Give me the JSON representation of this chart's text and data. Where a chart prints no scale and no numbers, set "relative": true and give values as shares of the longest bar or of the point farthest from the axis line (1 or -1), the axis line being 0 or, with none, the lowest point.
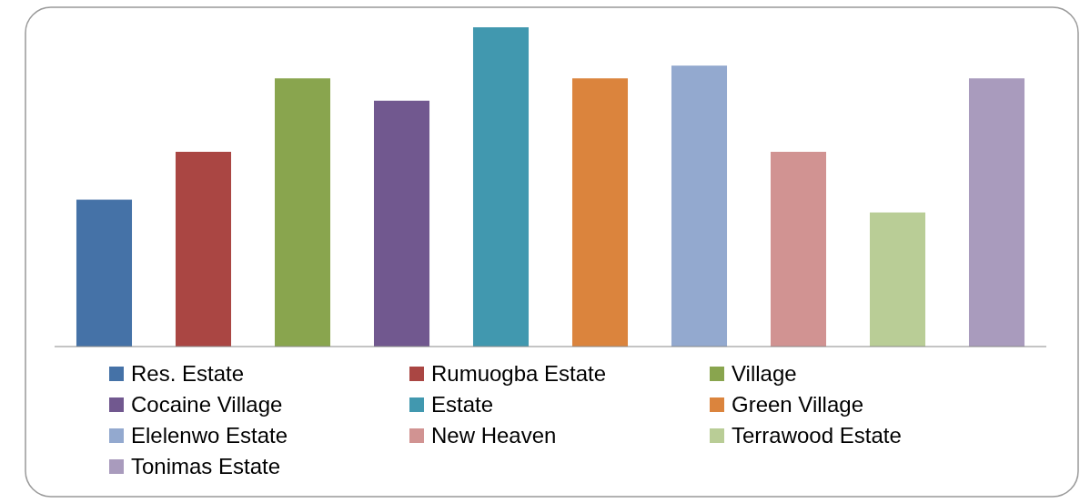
{
  "chart_data": {
    "type": "bar",
    "relative": true,
    "stacked": true,
    "categories": [
      null,
      null,
      null,
      null,
      null,
      null,
      null,
      null,
      null,
      null
    ],
    "legend": "bottom",
    "tick_labels": false,
    "series": [
      {
        "name": "Res. Estate",
        "color": "#4572a7",
        "values": [
          0.46,
          null,
          null,
          null,
          null,
          null,
          null,
          null,
          null,
          null
        ]
      },
      {
        "name": "Rumuogba Estate",
        "color": "#aa4643",
        "values": [
          null,
          0.61,
          null,
          null,
          null,
          null,
          null,
          null,
          null,
          null
        ]
      },
      {
        "name": "Village",
        "color": "#89a54e",
        "values": [
          null,
          null,
          0.84,
          null,
          null,
          null,
          null,
          null,
          null,
          null
        ]
      },
      {
        "name": "Cocaine Village",
        "color": "#71588f",
        "values": [
          null,
          null,
          null,
          0.77,
          null,
          null,
          null,
          null,
          null,
          null
        ]
      },
      {
        "name": "Estate",
        "color": "#4198af",
        "values": [
          null,
          null,
          null,
          null,
          1,
          null,
          null,
          null,
          null,
          null
        ]
      },
      {
        "name": "Green Village",
        "color": "#db843d",
        "values": [
          null,
          null,
          null,
          null,
          null,
          0.84,
          null,
          null,
          null,
          null
        ]
      },
      {
        "name": "Elelenwo Estate",
        "color": "#93a9cf",
        "values": [
          null,
          null,
          null,
          null,
          null,
          null,
          0.88,
          null,
          null,
          null
        ]
      },
      {
        "name": "New Heaven",
        "color": "#d19392",
        "values": [
          null,
          null,
          null,
          null,
          null,
          null,
          null,
          0.61,
          null,
          null
        ]
      },
      {
        "name": "Terrawood Estate",
        "color": "#b9cd96",
        "values": [
          null,
          null,
          null,
          null,
          null,
          null,
          null,
          null,
          0.42,
          null
        ]
      },
      {
        "name": "Tonimas Estate",
        "color": "#a99bbd",
        "values": [
          null,
          null,
          null,
          null,
          null,
          null,
          null,
          null,
          null,
          0.84
        ]
      }
    ]
  }
}
